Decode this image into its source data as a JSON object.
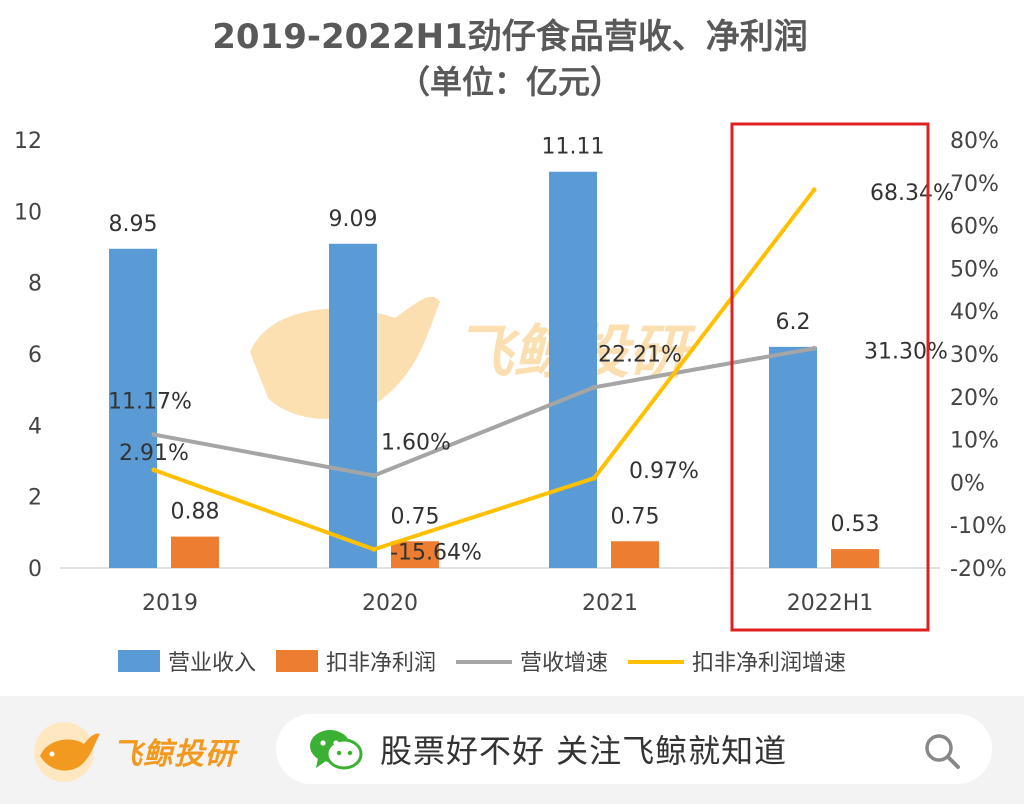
{
  "chart_data": {
    "type": "bar",
    "title": "2019-2022H1劲仔食品营收、净利润",
    "subtitle": "（单位：亿元）",
    "categories": [
      "2019",
      "2020",
      "2021",
      "2022H1"
    ],
    "y_left": {
      "min": 0,
      "max": 12,
      "ticks": [
        "0",
        "2",
        "4",
        "6",
        "8",
        "10",
        "12"
      ]
    },
    "y_right": {
      "min": -20,
      "max": 80,
      "ticks": [
        "-20%",
        "-10%",
        "0%",
        "10%",
        "20%",
        "30%",
        "40%",
        "50%",
        "60%",
        "70%",
        "80%"
      ]
    },
    "series": [
      {
        "name": "营业收入",
        "kind": "bar",
        "axis": "left",
        "color": "#5b9bd5",
        "values": [
          8.95,
          9.09,
          11.11,
          6.2
        ],
        "labels": [
          "8.95",
          "9.09",
          "11.11",
          "6.2"
        ]
      },
      {
        "name": "扣非净利润",
        "kind": "bar",
        "axis": "left",
        "color": "#ed7d31",
        "values": [
          0.88,
          0.75,
          0.75,
          0.53
        ],
        "labels": [
          "0.88",
          "0.75",
          "0.75",
          "0.53"
        ]
      },
      {
        "name": "营收增速",
        "kind": "line",
        "axis": "right",
        "color": "#a5a5a5",
        "values": [
          11.17,
          1.6,
          22.21,
          31.3
        ],
        "labels": [
          "11.17%",
          "1.60%",
          "22.21%",
          "31.30%"
        ]
      },
      {
        "name": "扣非净利润增速",
        "kind": "line",
        "axis": "right",
        "color": "#ffc000",
        "values": [
          2.91,
          -15.64,
          0.97,
          68.34
        ],
        "labels": [
          "2.91%",
          "-15.64%",
          "0.97%",
          "68.34%"
        ]
      }
    ],
    "highlight_category": "2022H1",
    "highlight_color": "#e02020",
    "legend_position": "bottom",
    "watermark": "飞鲸投研"
  },
  "footer": {
    "brand_name": "飞鲸投研",
    "search_text": "股票好不好 关注飞鲸就知道",
    "icons": {
      "brand_logo": "whale-logo-icon",
      "wechat": "wechat-icon",
      "search": "search-icon"
    }
  }
}
